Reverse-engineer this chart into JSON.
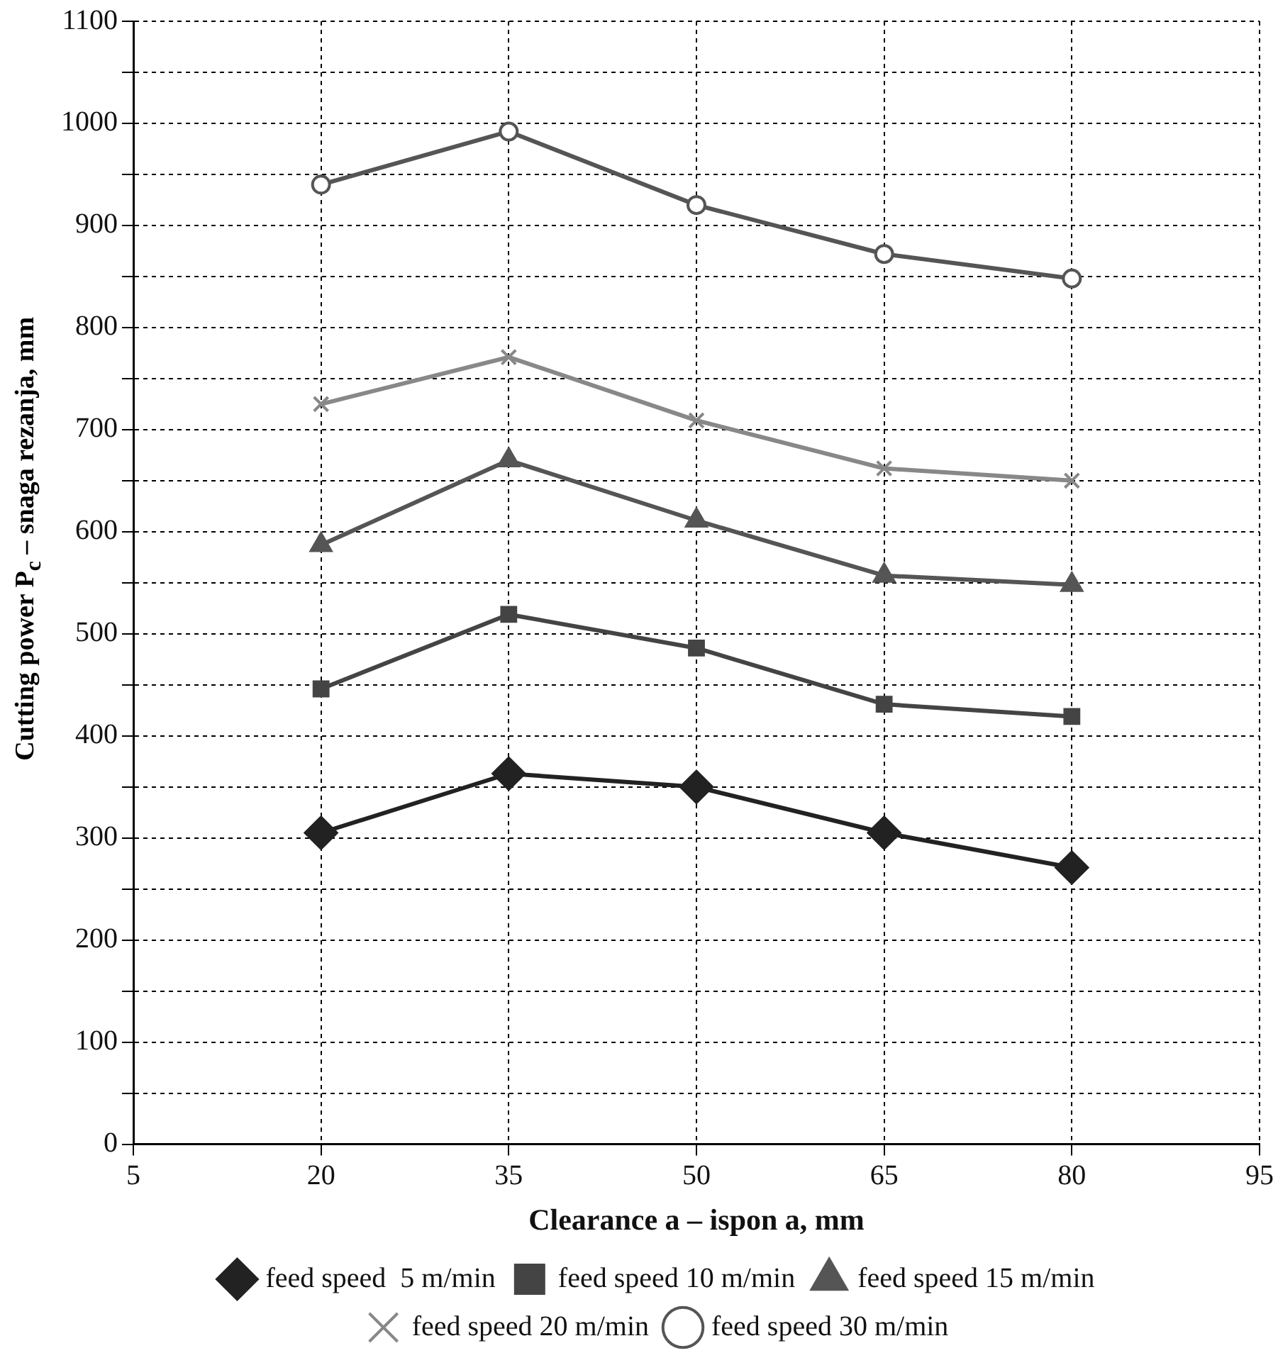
{
  "chart_data": {
    "type": "line",
    "xlabel": "Clearance a – ispon a, mm",
    "ylabel": "Cutting power P$_{c}$ – snaga rezanja, mm",
    "x": [
      20,
      35,
      50,
      65,
      80
    ],
    "xlim": [
      5,
      95
    ],
    "xticks": [
      5,
      20,
      35,
      50,
      65,
      80,
      95
    ],
    "ylim": [
      0,
      1100
    ],
    "yticks": [
      0,
      {
        "value": 50,
        "label": null
      },
      100,
      {
        "value": 150,
        "label": null
      },
      200,
      {
        "value": 250,
        "label": null
      },
      300,
      {
        "value": 350,
        "label": null
      },
      400,
      {
        "value": 450,
        "label": null
      },
      500,
      {
        "value": 550,
        "label": null
      },
      600,
      {
        "value": 650,
        "label": null
      },
      700,
      {
        "value": 750,
        "label": null
      },
      800,
      {
        "value": 850,
        "label": null
      },
      900,
      {
        "value": 950,
        "label": null
      },
      1000,
      {
        "value": 1050,
        "label": null
      },
      1100
    ],
    "grid": true,
    "legend": "bottom",
    "line_style": "solid",
    "series": [
      {
        "name": "feed speed  5 m/min",
        "color": "#222222",
        "marker": "diamond",
        "values": [
          305,
          363,
          350,
          305,
          271
        ]
      },
      {
        "name": "feed speed 10 m/min",
        "color": "#444444",
        "marker": "square",
        "values": [
          446,
          519,
          486,
          431,
          419
        ]
      },
      {
        "name": "feed speed 15 m/min",
        "color": "#555555",
        "marker": "triangle",
        "values": [
          587,
          670,
          611,
          557,
          548
        ]
      },
      {
        "name": "feed speed 20 m/min",
        "color": "#888888",
        "marker": "cross",
        "values": [
          725,
          771,
          709,
          662,
          650
        ]
      },
      {
        "name": "feed speed 30 m/min",
        "color": "#555555",
        "marker": "circle",
        "values": [
          940,
          992,
          920,
          872,
          848
        ]
      }
    ]
  }
}
